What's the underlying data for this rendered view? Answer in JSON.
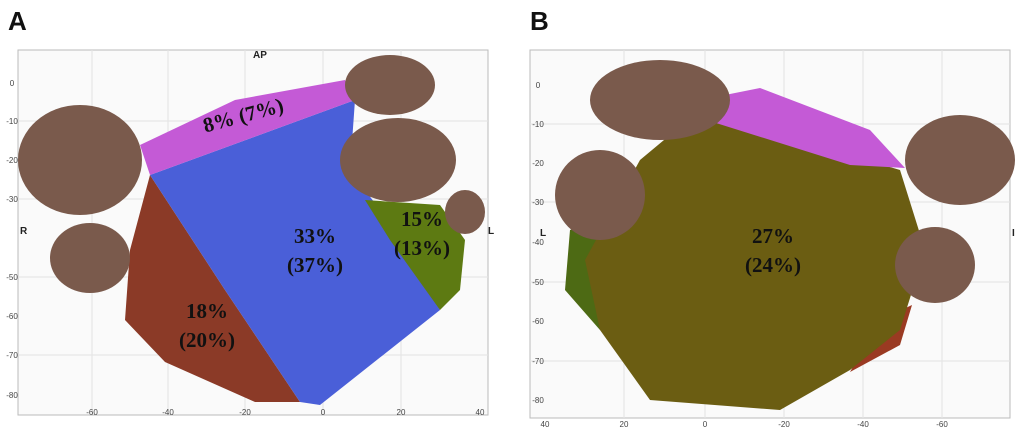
{
  "panels": [
    {
      "letter": "A",
      "top_label": "AP",
      "left_label": "R",
      "right_label": "L",
      "y_ticks": [
        "0",
        "-10",
        "-20",
        "-30",
        "-50",
        "-60",
        "-70",
        "-80"
      ],
      "x_ticks": [
        "-60",
        "-40",
        "-20",
        "0",
        "20",
        "40"
      ],
      "regions": [
        {
          "lines": [
            "8% (7%)"
          ]
        },
        {
          "lines": [
            "33%",
            "(37%)"
          ]
        },
        {
          "lines": [
            "15%",
            "(13%)"
          ]
        },
        {
          "lines": [
            "18%",
            "(20%)"
          ]
        }
      ]
    },
    {
      "letter": "B",
      "left_label": "L",
      "right_label": "I",
      "y_ticks": [
        "0",
        "-10",
        "-20",
        "-30",
        "-40",
        "-50",
        "-60",
        "-70",
        "-80"
      ],
      "x_ticks": [
        "40",
        "20",
        "0",
        "-20",
        "-40",
        "-60"
      ],
      "regions": [
        {
          "lines": [
            "27%",
            "(24%)"
          ]
        }
      ]
    }
  ]
}
